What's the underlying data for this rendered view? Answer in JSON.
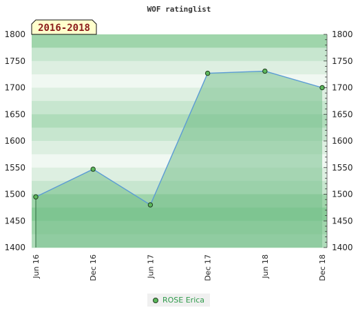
{
  "chart_data": {
    "type": "area",
    "title": "WOF ratinglist",
    "period_badge": "2016-2018",
    "x": [
      "Jun 16",
      "Dec 16",
      "Jun 17",
      "Dec 17",
      "Jun 18",
      "Dec 18"
    ],
    "series": [
      {
        "name": "ROSE Erica",
        "values": [
          1495,
          1547,
          1480,
          1727,
          1731,
          1700
        ]
      }
    ],
    "ylim": [
      1400,
      1800
    ],
    "yticks": [
      1400,
      1450,
      1500,
      1550,
      1600,
      1650,
      1700,
      1750,
      1800
    ],
    "ytick_labels": [
      "1400",
      "1450",
      "1500",
      "1550",
      "1600",
      "1650",
      "1700",
      "1750",
      "1800"
    ],
    "y_axis_both_sides": true,
    "grid": "horizontal-bands",
    "legend_position": "bottom-center",
    "colors": {
      "line": "#5b9bd5",
      "area": "#76c08d",
      "marker_fill": "#5cb85c",
      "marker_stroke": "#1f3d1f",
      "legend_text": "#2e9a4a",
      "badge_fill": "#ffffcc",
      "badge_text": "#8b1a1a"
    }
  }
}
